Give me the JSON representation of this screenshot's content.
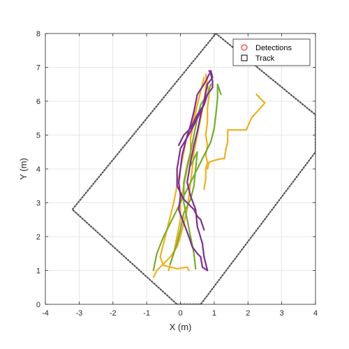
{
  "chart_data": {
    "type": "line",
    "title": "",
    "xlabel": "X (m)",
    "ylabel": "Y (m)",
    "xlim": [
      -4,
      4
    ],
    "ylim": [
      0,
      8
    ],
    "xticks": [
      "-4",
      "-3",
      "-2",
      "-1",
      "0",
      "1",
      "2",
      "3",
      "4"
    ],
    "yticks": [
      "0",
      "1",
      "2",
      "3",
      "4",
      "5",
      "6",
      "7",
      "8"
    ],
    "grid": true,
    "legend": {
      "placement": "top-right",
      "entries": [
        {
          "label": "Detections",
          "marker": "circle",
          "color": "#ff0000"
        },
        {
          "label": "Track",
          "marker": "square",
          "color": "#000000"
        }
      ]
    },
    "boundary": {
      "style": "dotted",
      "color": "#555555",
      "points": [
        [
          1.05,
          8.0
        ],
        [
          4.0,
          5.6
        ],
        [
          4.0,
          4.5
        ],
        [
          0.6,
          0.0
        ],
        [
          -0.1,
          0.0
        ],
        [
          -3.2,
          2.8
        ]
      ]
    },
    "series": [
      {
        "color": "#EDB120",
        "x": [
          0.8,
          0.75,
          0.7,
          0.6,
          0.5,
          0.4,
          0.35,
          0.3,
          0.25,
          0.2,
          0.1,
          0.0,
          -0.1,
          -0.3,
          -0.5,
          -0.7,
          -0.8
        ],
        "y": [
          6.7,
          6.4,
          6.0,
          5.5,
          5.0,
          4.5,
          4.0,
          3.6,
          3.2,
          2.8,
          2.4,
          2.0,
          1.7,
          1.4,
          1.2,
          1.0,
          0.8
        ]
      },
      {
        "color": "#EDB120",
        "x": [
          0.75,
          0.8,
          0.85,
          0.8,
          0.8,
          0.75,
          0.8,
          0.75,
          0.8,
          0.75,
          0.75,
          0.7
        ],
        "y": [
          6.8,
          6.5,
          6.2,
          5.8,
          5.4,
          5.0,
          4.7,
          4.4,
          4.2,
          4.0,
          3.7,
          3.4
        ]
      },
      {
        "color": "#EDB120",
        "x": [
          2.25,
          2.5,
          2.1,
          1.95,
          1.4,
          1.4,
          1.35,
          1.3,
          1.2,
          1.0,
          0.85,
          0.8
        ],
        "y": [
          6.2,
          5.95,
          5.5,
          5.15,
          5.15,
          4.8,
          4.6,
          4.3,
          4.3,
          4.25,
          4.2,
          4.0
        ]
      },
      {
        "color": "#EDB120",
        "x": [
          0.7,
          0.6,
          0.5,
          0.4,
          0.2,
          0.1,
          0.0,
          -0.1,
          -0.2,
          -0.3,
          -0.4,
          -0.5,
          -0.6,
          -0.5,
          -0.3,
          -0.1,
          0.2,
          0.25
        ],
        "y": [
          6.7,
          6.3,
          5.9,
          5.5,
          5.0,
          4.5,
          4.0,
          3.5,
          3.0,
          2.6,
          2.2,
          1.8,
          1.4,
          1.15,
          1.1,
          1.05,
          1.1,
          1.0
        ]
      },
      {
        "color": "#EDB120",
        "x": [
          0.6,
          0.5,
          0.4,
          0.3,
          0.3,
          0.2,
          0.1,
          0.0,
          0.0,
          -0.1,
          -0.2,
          -0.3,
          -0.35
        ],
        "y": [
          6.3,
          5.9,
          5.4,
          4.9,
          4.4,
          4.0,
          3.5,
          3.0,
          2.5,
          2.0,
          1.5,
          1.2,
          1.0
        ]
      },
      {
        "color": "#77AC30",
        "x": [
          1.2,
          1.1,
          1.1,
          1.05,
          1.0,
          0.9,
          0.7,
          0.5,
          0.3,
          0.1,
          -0.1,
          -0.3,
          -0.5,
          -0.7,
          -0.8
        ],
        "y": [
          6.2,
          6.5,
          6.1,
          5.6,
          5.2,
          4.8,
          4.4,
          4.0,
          3.6,
          3.2,
          2.8,
          2.4,
          2.0,
          1.5,
          1.0
        ]
      },
      {
        "color": "#77AC30",
        "x": [
          0.9,
          0.8,
          0.6,
          0.5,
          0.4,
          0.3,
          0.2,
          0.1,
          0.1,
          0.2,
          0.3,
          0.4,
          0.45
        ],
        "y": [
          6.5,
          6.2,
          5.9,
          5.5,
          5.0,
          4.5,
          4.1,
          3.6,
          3.0,
          2.5,
          2.0,
          1.5,
          1.05
        ]
      },
      {
        "color": "#77AC30",
        "x": [
          0.3,
          0.4,
          0.5,
          0.45,
          0.4,
          0.3,
          0.1,
          0.0,
          -0.1,
          -0.2,
          -0.3
        ],
        "y": [
          4.1,
          4.3,
          4.5,
          4.0,
          3.5,
          3.1,
          2.7,
          2.2,
          1.8,
          1.5,
          1.2
        ]
      },
      {
        "color": "#7E2F8E",
        "x": [
          0.9,
          0.95,
          0.8,
          0.7,
          0.6,
          0.5,
          0.4,
          0.3,
          0.2,
          0.3,
          0.45,
          0.5,
          0.65,
          0.7,
          0.8
        ],
        "y": [
          6.9,
          6.7,
          6.5,
          6.0,
          5.6,
          5.1,
          4.7,
          4.2,
          3.6,
          3.2,
          2.8,
          2.3,
          1.8,
          1.4,
          1.0
        ]
      },
      {
        "color": "#7E2F8E",
        "x": [
          0.85,
          0.7,
          0.5,
          0.4,
          0.3,
          0.15,
          0.05,
          0.0,
          -0.05,
          0.0,
          -0.05,
          0.1,
          0.25,
          0.35,
          0.5,
          0.6,
          0.65,
          0.8
        ],
        "y": [
          6.8,
          6.5,
          6.2,
          5.7,
          5.3,
          4.8,
          4.4,
          4.0,
          3.6,
          3.2,
          2.8,
          2.4,
          2.0,
          1.7,
          1.5,
          1.4,
          1.1,
          1.0
        ]
      },
      {
        "color": "#7E2F8E",
        "x": [
          0.8,
          0.7,
          0.5,
          0.3,
          0.0,
          -0.05,
          -0.1,
          -0.1,
          0.1,
          0.3,
          0.4,
          0.5,
          0.6,
          0.7
        ],
        "y": [
          6.2,
          5.9,
          5.5,
          5.1,
          4.6,
          4.3,
          4.0,
          3.5,
          3.1,
          2.9,
          2.8,
          2.6,
          2.5,
          2.2
        ]
      },
      {
        "color": "#7E2F8E",
        "x": [
          -0.05,
          0.1,
          0.3,
          0.5,
          0.7,
          0.8,
          0.95,
          0.95,
          0.9,
          0.85
        ],
        "y": [
          4.7,
          5.0,
          5.2,
          5.6,
          5.9,
          6.2,
          6.4,
          6.6,
          6.8,
          6.9
        ]
      }
    ]
  }
}
